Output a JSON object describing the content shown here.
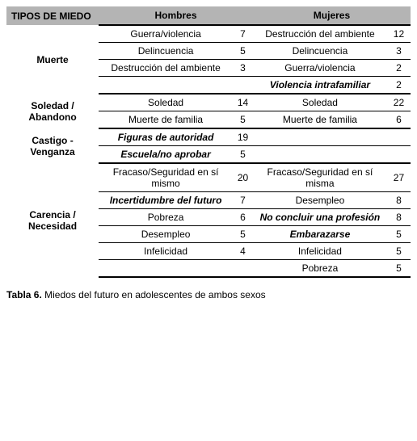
{
  "header": {
    "tipos": "TIPOS DE MIEDO",
    "hombres": "Hombres",
    "mujeres": "Mujeres"
  },
  "caption_bold": "Tabla 6.",
  "caption_rest": " Miedos del futuro en adolescentes de ambos sexos",
  "styles": {
    "header_bg": "#b4b4b4",
    "border_color": "#000000",
    "font_family": "Arial",
    "base_font_size_pt": 9
  },
  "rows": [
    {
      "cat": "Muerte",
      "h": "Guerra/violencia",
      "hn": "7",
      "m": "Destrucción del ambiente",
      "mn": "12",
      "hStyle": "",
      "mStyle": ""
    },
    {
      "h": "Delincuencia",
      "hn": "5",
      "m": "Delincuencia",
      "mn": "3",
      "hStyle": "",
      "mStyle": ""
    },
    {
      "h": "Destrucción del ambiente",
      "hn": "3",
      "m": "Guerra/violencia",
      "mn": "2",
      "hStyle": "",
      "mStyle": ""
    },
    {
      "h": "",
      "hn": "",
      "m": "Violencia intrafamiliar",
      "mn": "2",
      "hStyle": "",
      "mStyle": "bi"
    },
    {
      "cat": "Soledad / Abandono",
      "h": "Soledad",
      "hn": "14",
      "m": "Soledad",
      "mn": "22",
      "hStyle": "",
      "mStyle": ""
    },
    {
      "h": "Muerte de familia",
      "hn": "5",
      "m": "Muerte de familia",
      "mn": "6",
      "hStyle": "",
      "mStyle": ""
    },
    {
      "cat": "Castigo - Venganza",
      "h": "Figuras de autoridad",
      "hn": "19",
      "m": "",
      "mn": "",
      "hStyle": "bi",
      "mStyle": ""
    },
    {
      "h": "Escuela/no aprobar",
      "hn": "5",
      "m": "",
      "mn": "",
      "hStyle": "bi",
      "mStyle": ""
    },
    {
      "cat": "Carencia / Necesidad",
      "h": "Fracaso/Seguridad en sí mismo",
      "hn": "20",
      "m": "Fracaso/Seguridad en sí misma",
      "mn": "27",
      "hStyle": "",
      "mStyle": ""
    },
    {
      "h": "Incertidumbre del futuro",
      "hn": "7",
      "m": "Desempleo",
      "mn": "8",
      "hStyle": "bi",
      "mStyle": ""
    },
    {
      "h": "Pobreza",
      "hn": "6",
      "m": "No concluir una profesión",
      "mn": "8",
      "hStyle": "",
      "mStyle": "bi"
    },
    {
      "h": "Desempleo",
      "hn": "5",
      "m": "Embarazarse",
      "mn": "5",
      "hStyle": "",
      "mStyle": "bi"
    },
    {
      "h": "Infelicidad",
      "hn": "4",
      "m": "Infelicidad",
      "mn": "5",
      "hStyle": "",
      "mStyle": ""
    },
    {
      "h": "",
      "hn": "",
      "m": "Pobreza",
      "mn": "5",
      "hStyle": "",
      "mStyle": ""
    }
  ]
}
